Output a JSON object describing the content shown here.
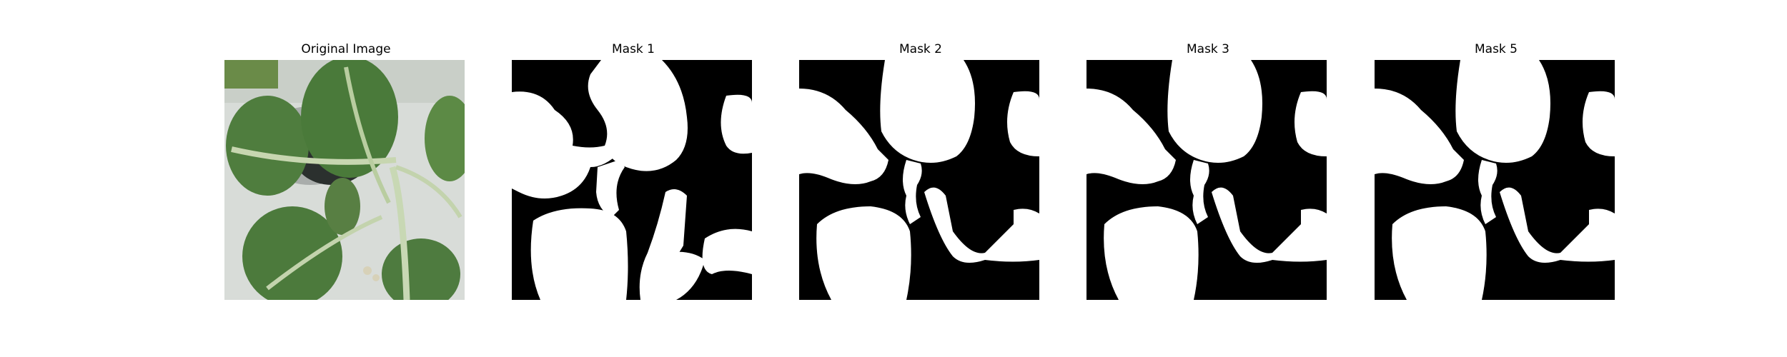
{
  "panels": [
    {
      "title": "Original Image",
      "kind": "photo"
    },
    {
      "title": "Mask 1",
      "kind": "mask"
    },
    {
      "title": "Mask 2",
      "kind": "mask"
    },
    {
      "title": "Mask 3",
      "kind": "mask"
    },
    {
      "title": "Mask 5",
      "kind": "mask"
    }
  ],
  "colors": {
    "mask_foreground": "#ffffff",
    "mask_background": "#000000",
    "leaf_dark": "#3f6b35",
    "leaf_light": "#6d9a4f",
    "background_wall": "#d6dad6"
  }
}
